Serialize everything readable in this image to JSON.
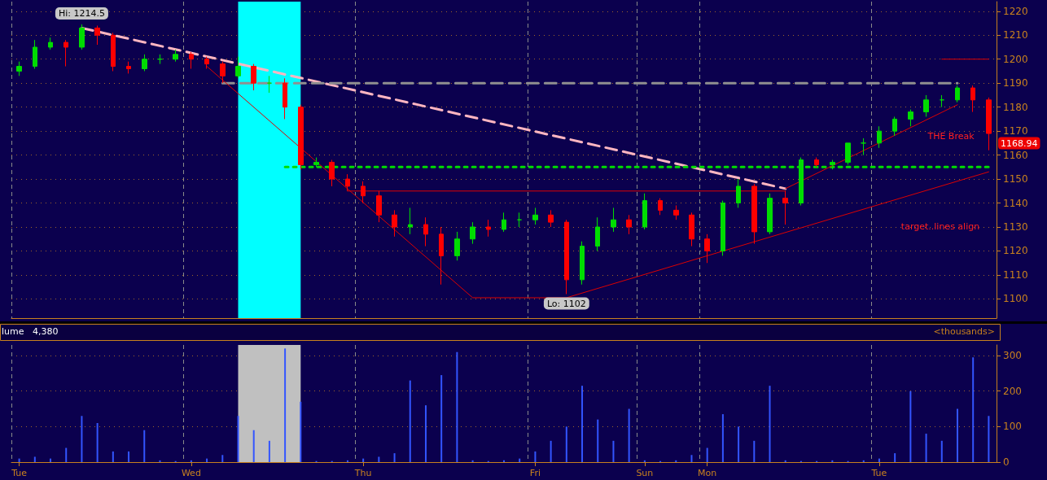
{
  "chart_data": [
    {
      "type": "candlestick",
      "categories": [
        null,
        null,
        null,
        null,
        null,
        null,
        null,
        null,
        null,
        null,
        null,
        null,
        null,
        null,
        null,
        null,
        null,
        null,
        null,
        null,
        null,
        null,
        null,
        null,
        null,
        null,
        null,
        null,
        null,
        null,
        null,
        null,
        null,
        null,
        null,
        null,
        null,
        null,
        null,
        null,
        null,
        null,
        null,
        null,
        null,
        null,
        null,
        null,
        null,
        null,
        null,
        null,
        null,
        null,
        null,
        null,
        null,
        null,
        null,
        null,
        null,
        null,
        null
      ],
      "ohlc": [
        [
          1195,
          1199,
          1193,
          1197
        ],
        [
          1197,
          1208,
          1196,
          1205
        ],
        [
          1205,
          1209,
          1204,
          1207
        ],
        [
          1207,
          1208,
          1197,
          1205
        ],
        [
          1205,
          1214.5,
          1204,
          1213
        ],
        [
          1213,
          1214,
          1206,
          1210
        ],
        [
          1210,
          1211,
          1195,
          1197
        ],
        [
          1197,
          1199,
          1194,
          1196
        ],
        [
          1196,
          1202,
          1195,
          1200
        ],
        [
          1200,
          1202,
          1198,
          1200
        ],
        [
          1200,
          1204,
          1199,
          1202
        ],
        [
          1202,
          1203,
          1196,
          1200
        ],
        [
          1200,
          1201,
          1196,
          1198
        ],
        [
          1198,
          1199,
          1190,
          1193
        ],
        [
          1193,
          1201,
          1192,
          1197
        ],
        [
          1197,
          1198,
          1187,
          1190
        ],
        [
          1190,
          1193,
          1186,
          1190
        ],
        [
          1190,
          1192,
          1175,
          1180
        ],
        [
          1180,
          1181,
          1154,
          1156
        ],
        [
          1156,
          1159,
          1155,
          1157
        ],
        [
          1157,
          1158,
          1147,
          1150
        ],
        [
          1150,
          1152,
          1145,
          1147
        ],
        [
          1147,
          1149,
          1140,
          1143
        ],
        [
          1143,
          1145,
          1132,
          1135
        ],
        [
          1135,
          1137,
          1126,
          1130
        ],
        [
          1130,
          1138,
          1127,
          1131
        ],
        [
          1131,
          1134,
          1122,
          1127
        ],
        [
          1127,
          1130,
          1106,
          1118
        ],
        [
          1118,
          1128,
          1116,
          1125
        ],
        [
          1125,
          1132,
          1123,
          1130
        ],
        [
          1130,
          1133,
          1126,
          1129
        ],
        [
          1129,
          1136,
          1128,
          1133
        ],
        [
          1133,
          1136,
          1130,
          1133
        ],
        [
          1133,
          1138,
          1131,
          1135
        ],
        [
          1135,
          1137,
          1130,
          1132
        ],
        [
          1132,
          1133,
          1102,
          1108
        ],
        [
          1108,
          1124,
          1106,
          1122
        ],
        [
          1122,
          1134,
          1120,
          1130
        ],
        [
          1130,
          1138,
          1128,
          1133
        ],
        [
          1133,
          1135,
          1127,
          1130
        ],
        [
          1130,
          1144,
          1129,
          1141
        ],
        [
          1141,
          1142,
          1135,
          1137
        ],
        [
          1137,
          1139,
          1133,
          1135
        ],
        [
          1135,
          1136,
          1122,
          1125
        ],
        [
          1125,
          1127,
          1115,
          1120
        ],
        [
          1120,
          1141,
          1118,
          1140
        ],
        [
          1140,
          1150,
          1138,
          1147
        ],
        [
          1147,
          1148,
          1123,
          1128
        ],
        [
          1128,
          1144,
          1127,
          1142
        ],
        [
          1142,
          1145,
          1131,
          1140
        ],
        [
          1140,
          1159,
          1139,
          1158
        ],
        [
          1158,
          1159,
          1155,
          1156
        ],
        [
          1156,
          1158,
          1154,
          1157
        ],
        [
          1157,
          1165,
          1156,
          1165
        ],
        [
          1165,
          1167,
          1160,
          1165
        ],
        [
          1165,
          1172,
          1163,
          1170
        ],
        [
          1170,
          1176,
          1168,
          1175
        ],
        [
          1175,
          1179,
          1172,
          1178
        ],
        [
          1178,
          1185,
          1176,
          1183
        ],
        [
          1183,
          1185,
          1180,
          1183
        ],
        [
          1183,
          1189,
          1182,
          1188
        ],
        [
          1188,
          1189,
          1178,
          1183
        ],
        [
          1183,
          1184,
          1162,
          1169
        ]
      ],
      "colors": [
        "#00dd00",
        "#00dd00",
        "#00dd00",
        "#ff0000",
        "#00dd00",
        "#ff0000",
        "#ff0000",
        "#ff0000",
        "#00dd00",
        "#00dd00",
        "#00dd00",
        "#ff0000",
        "#ff0000",
        "#ff0000",
        "#00dd00",
        "#ff0000",
        "#00dd00",
        "#ff0000",
        "#ff0000",
        "#00dd00",
        "#ff0000",
        "#ff0000",
        "#ff0000",
        "#ff0000",
        "#ff0000",
        "#00dd00",
        "#ff0000",
        "#ff0000",
        "#00dd00",
        "#00dd00",
        "#ff0000",
        "#00dd00",
        "#00dd00",
        "#00dd00",
        "#ff0000",
        "#ff0000",
        "#00dd00",
        "#00dd00",
        "#00dd00",
        "#ff0000",
        "#00dd00",
        "#ff0000",
        "#ff0000",
        "#ff0000",
        "#ff0000",
        "#00dd00",
        "#00dd00",
        "#ff0000",
        "#00dd00",
        "#ff0000",
        "#00dd00",
        "#ff0000",
        "#00dd00",
        "#00dd00",
        "#00dd00",
        "#00dd00",
        "#00dd00",
        "#00dd00",
        "#00dd00",
        "#00dd00",
        "#00dd00",
        "#ff0000",
        "#ff0000"
      ],
      "series": [
        {
          "type": "line",
          "line_style": "dashed",
          "color": "#ffb6c1",
          "values": [
            null,
            null,
            null,
            null,
            1213,
            null,
            null,
            null,
            null,
            null,
            null,
            null,
            null,
            null,
            null,
            null,
            null,
            null,
            null,
            null,
            null,
            null,
            null,
            null,
            null,
            null,
            null,
            null,
            null,
            null,
            null,
            null,
            null,
            null,
            null,
            null,
            null,
            null,
            null,
            null,
            null,
            null,
            null,
            null,
            null,
            null,
            null,
            null,
            null,
            1146,
            null,
            null,
            null,
            null,
            null,
            null,
            null,
            null,
            null,
            null,
            null,
            null,
            null
          ]
        },
        {
          "type": "line",
          "line_style": "dashed",
          "color": "#909090",
          "values": [
            null,
            null,
            null,
            null,
            null,
            null,
            null,
            null,
            null,
            null,
            null,
            null,
            null,
            1190,
            null,
            null,
            null,
            null,
            null,
            null,
            null,
            null,
            null,
            null,
            null,
            null,
            null,
            null,
            null,
            null,
            null,
            null,
            null,
            null,
            null,
            null,
            null,
            null,
            null,
            null,
            null,
            null,
            null,
            null,
            null,
            null,
            null,
            null,
            null,
            null,
            null,
            null,
            null,
            null,
            null,
            null,
            null,
            null,
            null,
            null,
            1190,
            null,
            null
          ]
        },
        {
          "type": "line",
          "line_style": "dotted",
          "color": "#00dd00",
          "values": [
            null,
            null,
            null,
            null,
            null,
            null,
            null,
            null,
            null,
            null,
            null,
            null,
            null,
            null,
            null,
            null,
            null,
            1155,
            null,
            null,
            null,
            null,
            null,
            null,
            null,
            null,
            null,
            null,
            null,
            null,
            null,
            null,
            null,
            null,
            null,
            null,
            null,
            null,
            null,
            null,
            null,
            null,
            null,
            null,
            null,
            null,
            null,
            null,
            null,
            null,
            null,
            null,
            null,
            null,
            null,
            null,
            null,
            null,
            null,
            null,
            null,
            null,
            1155
          ]
        },
        {
          "type": "line",
          "line_style": "solid",
          "color": "#dd0000",
          "values": [
            null,
            null,
            null,
            null,
            null,
            null,
            null,
            null,
            null,
            null,
            null,
            null,
            1197,
            null,
            null,
            null,
            null,
            null,
            null,
            null,
            null,
            null,
            null,
            null,
            null,
            null,
            null,
            null,
            null,
            1100.5,
            null,
            null,
            null,
            null,
            null,
            1100.5,
            null,
            null,
            null,
            null,
            null,
            null,
            null,
            null,
            null,
            null,
            null,
            null,
            null,
            null,
            null,
            null,
            null,
            null,
            null,
            null,
            null,
            null,
            null,
            null,
            null,
            null,
            1153
          ]
        },
        {
          "type": "line",
          "line_style": "solid",
          "color": "#dd0000",
          "values": [
            null,
            null,
            null,
            null,
            null,
            null,
            null,
            null,
            null,
            null,
            null,
            null,
            null,
            null,
            null,
            null,
            null,
            null,
            null,
            null,
            null,
            1145,
            null,
            null,
            null,
            null,
            null,
            null,
            null,
            null,
            null,
            null,
            null,
            null,
            null,
            null,
            null,
            null,
            null,
            null,
            null,
            null,
            null,
            null,
            null,
            null,
            null,
            null,
            null,
            1145,
            null,
            null,
            null,
            null,
            null,
            null,
            null,
            null,
            null,
            null,
            null,
            null,
            null
          ]
        },
        {
          "type": "line",
          "line_style": "solid",
          "color": "#dd0000",
          "values": [
            null,
            null,
            null,
            null,
            null,
            null,
            null,
            null,
            null,
            null,
            null,
            null,
            null,
            null,
            null,
            null,
            null,
            null,
            null,
            null,
            null,
            null,
            null,
            null,
            null,
            null,
            null,
            null,
            null,
            null,
            null,
            null,
            null,
            null,
            null,
            null,
            null,
            null,
            null,
            null,
            null,
            null,
            null,
            null,
            null,
            null,
            null,
            null,
            null,
            1146,
            null,
            null,
            null,
            null,
            null,
            null,
            null,
            null,
            null,
            null,
            1181,
            null,
            null
          ]
        },
        {
          "type": "line",
          "line_style": "solid",
          "color": "#dd0000",
          "values": [
            null,
            null,
            null,
            null,
            null,
            null,
            null,
            null,
            null,
            null,
            null,
            null,
            null,
            null,
            null,
            null,
            null,
            null,
            null,
            null,
            null,
            null,
            null,
            null,
            null,
            null,
            null,
            null,
            null,
            null,
            null,
            null,
            null,
            null,
            null,
            null,
            null,
            null,
            null,
            null,
            null,
            null,
            null,
            null,
            null,
            null,
            null,
            null,
            null,
            null,
            null,
            null,
            null,
            null,
            null,
            null,
            null,
            null,
            null,
            1200,
            null,
            null,
            1200
          ]
        }
      ],
      "annotations": [
        {
          "text": "Hi: 1214.5",
          "y": 1214.5
        },
        {
          "text": "Lo: 1102",
          "y": 1102
        },
        "THE Break",
        "target..lines align",
        "1168.94"
      ],
      "ylim": [
        1092,
        1224
      ],
      "yticks": [
        1100,
        1110,
        1120,
        1130,
        1140,
        1150,
        1160,
        1170,
        1180,
        1190,
        1200,
        1210,
        1220
      ],
      "tick_labels": "y",
      "grid": true
    },
    {
      "type": "bar",
      "title": "lume",
      "ylabel": "<thousands>",
      "annotations": [
        "4,380"
      ],
      "categories": [
        "Tue",
        null,
        null,
        null,
        null,
        null,
        null,
        null,
        null,
        null,
        null,
        "Wed",
        null,
        null,
        null,
        null,
        null,
        null,
        null,
        null,
        null,
        null,
        "Thu",
        null,
        null,
        null,
        null,
        null,
        null,
        null,
        null,
        null,
        null,
        "Fri",
        null,
        null,
        null,
        null,
        null,
        null,
        "Sun",
        null,
        null,
        null,
        "Mon",
        null,
        null,
        null,
        null,
        null,
        null,
        null,
        null,
        null,
        null,
        "Tue",
        null,
        null,
        null,
        null,
        null,
        null,
        null
      ],
      "series": [
        {
          "color": "#3355ff",
          "values": [
            10,
            15,
            10,
            40,
            130,
            110,
            30,
            30,
            90,
            5,
            3,
            5,
            10,
            20,
            130,
            90,
            60,
            320,
            170,
            3,
            3,
            5,
            10,
            15,
            25,
            230,
            160,
            245,
            310,
            5,
            3,
            5,
            10,
            30,
            60,
            100,
            215,
            120,
            60,
            150,
            5,
            3,
            5,
            20,
            40,
            135,
            100,
            60,
            215,
            5,
            3,
            3,
            5,
            3,
            5,
            10,
            25,
            200,
            80,
            60,
            150,
            295,
            130
          ]
        }
      ],
      "ylim": [
        0,
        330
      ],
      "yticks": [
        0,
        100,
        200,
        300
      ],
      "grid": true
    }
  ]
}
